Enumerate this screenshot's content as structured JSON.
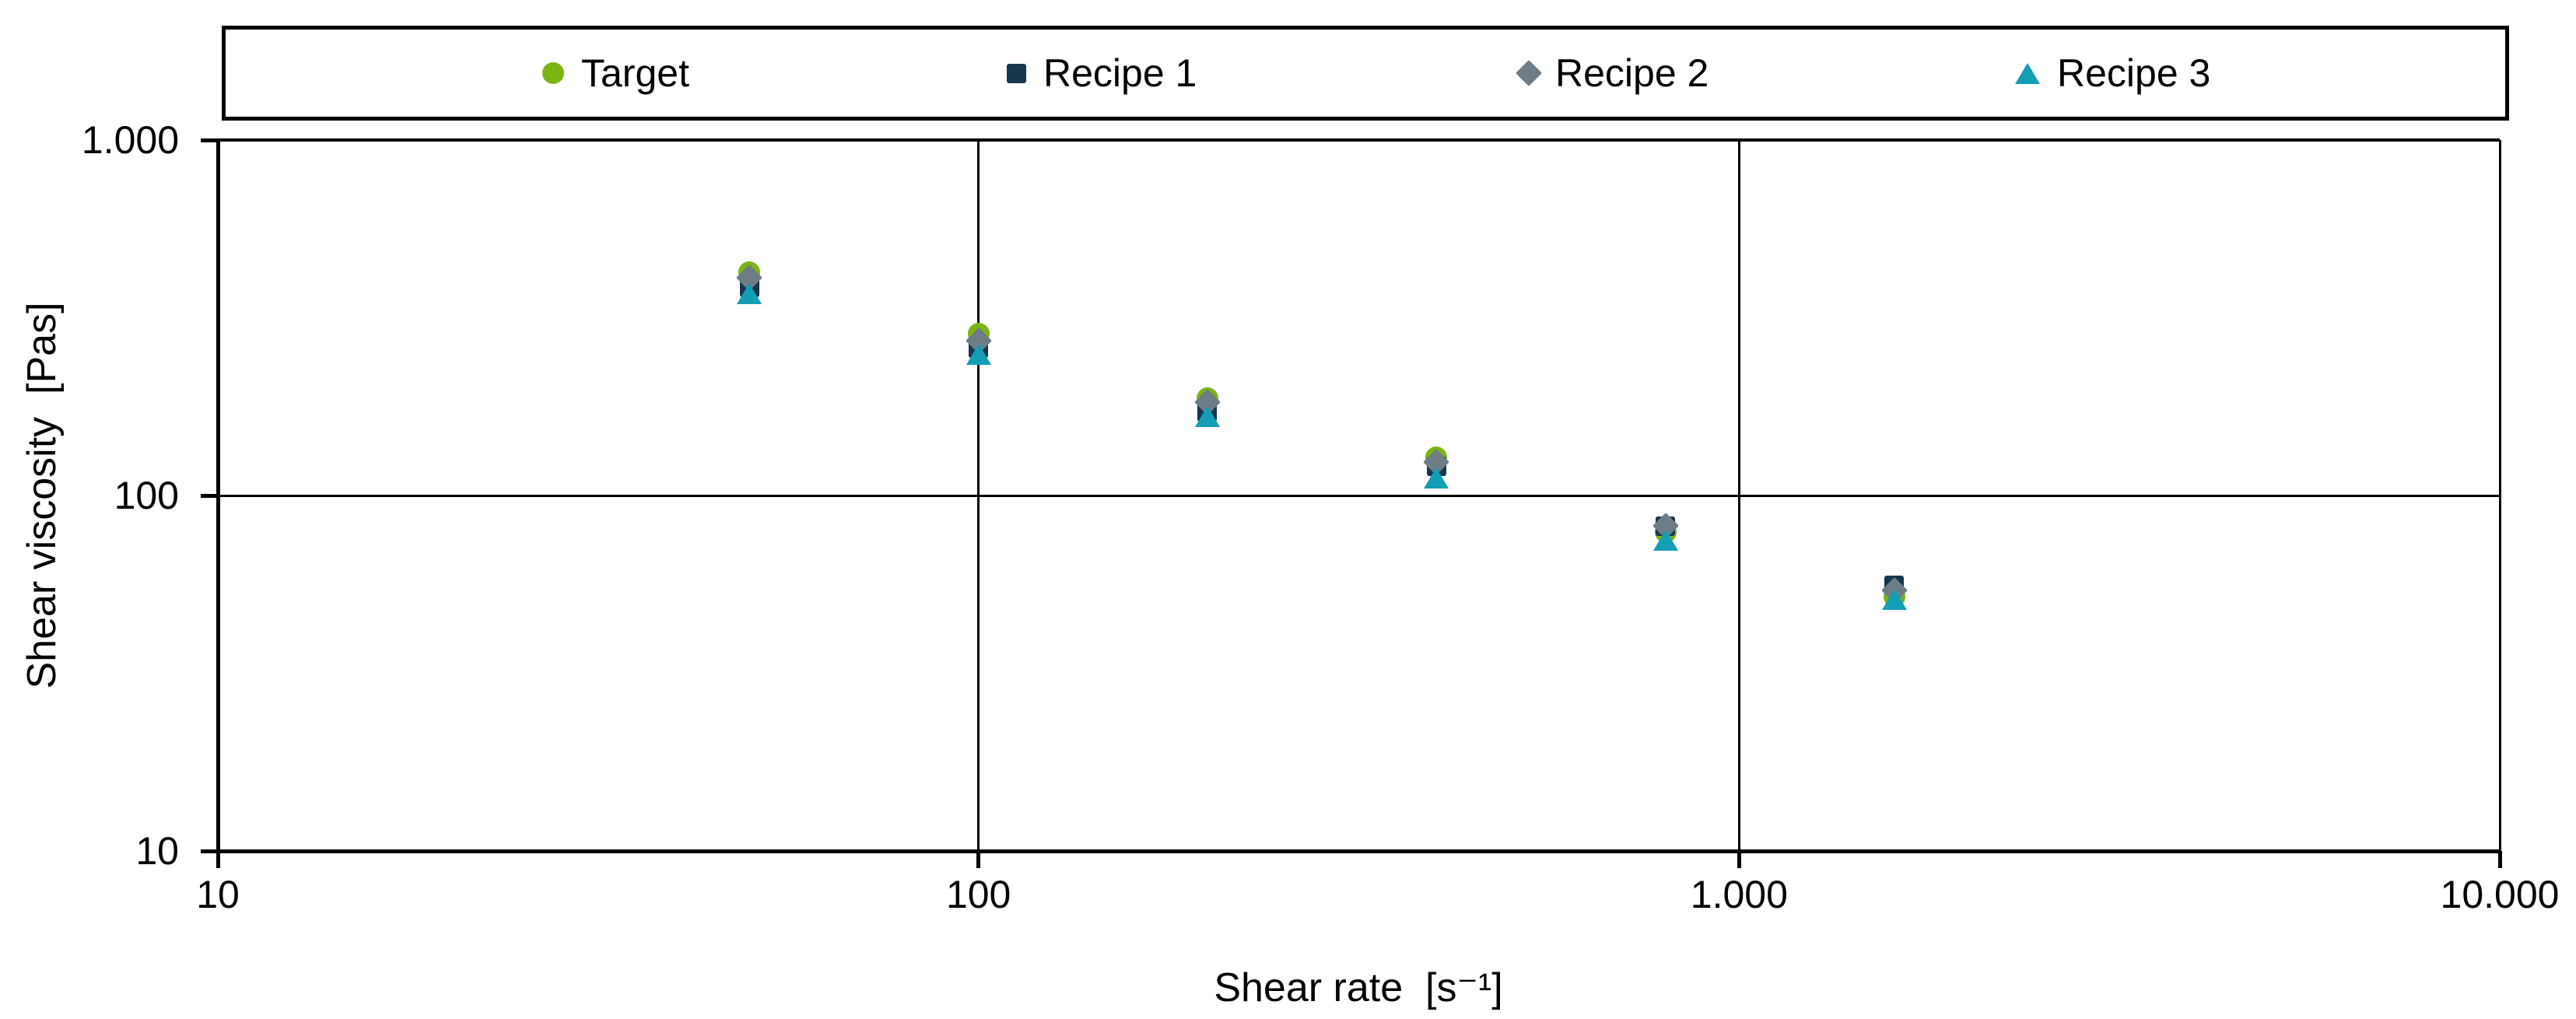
{
  "chart_data": {
    "type": "scatter",
    "title": "",
    "legend_position": "top",
    "background": "#FFFFFF",
    "axis_color": "#000000",
    "x_axis": {
      "title": "Shear rate  [s⁻¹]",
      "scale": "log",
      "lim": [
        10,
        10000
      ],
      "ticks": [
        {
          "v": 10,
          "label": "10"
        },
        {
          "v": 100,
          "label": "100"
        },
        {
          "v": 1000,
          "label": "1.000"
        },
        {
          "v": 10000,
          "label": "10.000"
        }
      ]
    },
    "y_axis": {
      "title": "Shear viscosity  [Pas]",
      "scale": "log",
      "lim": [
        10,
        1000
      ],
      "ticks": [
        {
          "v": 1000,
          "label": "1.000"
        },
        {
          "v": 100,
          "label": "100"
        },
        {
          "v": 10,
          "label": "10"
        }
      ]
    },
    "x": [
      50,
      100,
      200,
      400,
      800,
      1600
    ],
    "series": [
      {
        "name": "Target",
        "marker": "circle",
        "color": "#7CB414",
        "values": [
          425,
          285,
          188,
          128,
          79,
          52
        ]
      },
      {
        "name": "Recipe 1",
        "marker": "square",
        "color": "#16374E",
        "values": [
          385,
          260,
          172,
          121,
          82,
          56
        ]
      },
      {
        "name": "Recipe 2",
        "marker": "diamond",
        "color": "#6E7C86",
        "values": [
          410,
          272,
          183,
          124,
          82,
          54
        ]
      },
      {
        "name": "Recipe 3",
        "marker": "triangle",
        "color": "#139EB6",
        "values": [
          370,
          250,
          167,
          112,
          75,
          51
        ]
      }
    ]
  }
}
